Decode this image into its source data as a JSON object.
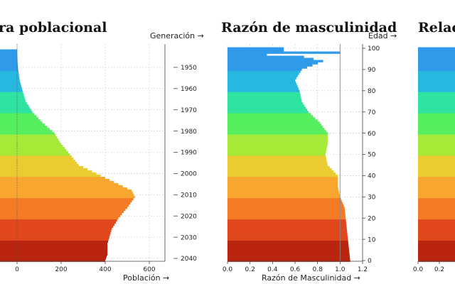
{
  "panels": {
    "pyramid": {
      "title": "ra poblacional",
      "generation_label": "Generación →",
      "xlabel": "Población →"
    },
    "masc": {
      "title": "Razón de masculinidad",
      "age_label": "Edad →",
      "xlabel": "Razón de Masculinidad →"
    },
    "third": {
      "title": "Relac"
    }
  },
  "chart_data": [
    {
      "type": "bar",
      "orientation": "horizontal",
      "title": "ra poblacional",
      "xlabel": "Población →",
      "ylabel": "Generación →",
      "x_ticks": [
        0,
        200,
        400,
        600
      ],
      "xlim": [
        -80,
        660
      ],
      "generation_ticks": [
        1950,
        1960,
        1970,
        1980,
        1990,
        2000,
        2010,
        2020,
        2030,
        2040
      ],
      "age_range": [
        0,
        100
      ],
      "population_by_age": [
        {
          "age": 0,
          "value": 400
        },
        {
          "age": 3,
          "value": 410
        },
        {
          "age": 8,
          "value": 410
        },
        {
          "age": 15,
          "value": 430
        },
        {
          "age": 20,
          "value": 460
        },
        {
          "age": 25,
          "value": 500
        },
        {
          "age": 30,
          "value": 535
        },
        {
          "age": 33,
          "value": 520
        },
        {
          "age": 36,
          "value": 460
        },
        {
          "age": 40,
          "value": 380
        },
        {
          "age": 45,
          "value": 280
        },
        {
          "age": 50,
          "value": 240
        },
        {
          "age": 55,
          "value": 200
        },
        {
          "age": 60,
          "value": 170
        },
        {
          "age": 65,
          "value": 115
        },
        {
          "age": 70,
          "value": 70
        },
        {
          "age": 75,
          "value": 40
        },
        {
          "age": 80,
          "value": 25
        },
        {
          "age": 85,
          "value": 12
        },
        {
          "age": 90,
          "value": 5
        },
        {
          "age": 94,
          "value": 2
        },
        {
          "age": 100,
          "value": 0
        }
      ],
      "grid": true
    },
    {
      "type": "bar",
      "orientation": "horizontal",
      "title": "Razón de masculinidad",
      "xlabel": "Razón de Masculinidad →",
      "ylabel": "Edad →",
      "x_ticks": [
        0.0,
        0.2,
        0.4,
        0.6,
        0.8,
        1.0,
        1.2
      ],
      "xlim": [
        0,
        1.2
      ],
      "y_ticks": [
        0,
        10,
        20,
        30,
        40,
        50,
        60,
        70,
        80,
        90,
        100
      ],
      "ylim": [
        0,
        100
      ],
      "reference_line": 1.0,
      "ratio_by_age": [
        {
          "age": 0,
          "value": 1.09
        },
        {
          "age": 10,
          "value": 1.07
        },
        {
          "age": 20,
          "value": 1.05
        },
        {
          "age": 25,
          "value": 1.04
        },
        {
          "age": 30,
          "value": 1.0
        },
        {
          "age": 35,
          "value": 0.98
        },
        {
          "age": 40,
          "value": 0.98
        },
        {
          "age": 45,
          "value": 0.89
        },
        {
          "age": 50,
          "value": 0.87
        },
        {
          "age": 55,
          "value": 0.89
        },
        {
          "age": 60,
          "value": 0.89
        },
        {
          "age": 65,
          "value": 0.82
        },
        {
          "age": 70,
          "value": 0.72
        },
        {
          "age": 75,
          "value": 0.66
        },
        {
          "age": 80,
          "value": 0.64
        },
        {
          "age": 85,
          "value": 0.6
        },
        {
          "age": 90,
          "value": 0.66
        },
        {
          "age": 94,
          "value": 0.85
        },
        {
          "age": 96,
          "value": 0.68
        },
        {
          "age": 97,
          "value": 0.35
        },
        {
          "age": 98,
          "value": 1.0
        },
        {
          "age": 99,
          "value": 0.5
        },
        {
          "age": 100,
          "value": 0.5
        }
      ],
      "grid": true
    },
    {
      "type": "bar",
      "orientation": "horizontal",
      "title": "Relac",
      "x_ticks": [
        0.0,
        0.2
      ],
      "ylim": [
        0,
        100
      ]
    }
  ],
  "colors": {
    "age_gradient": [
      "#b8240e",
      "#e0471c",
      "#f57a26",
      "#f9a62f",
      "#ebcb32",
      "#a6ea38",
      "#55ee5e",
      "#2fe3a0",
      "#27b8e0",
      "#2f9ae9"
    ],
    "grid": "#cccccc",
    "ref_line": "#888888"
  }
}
